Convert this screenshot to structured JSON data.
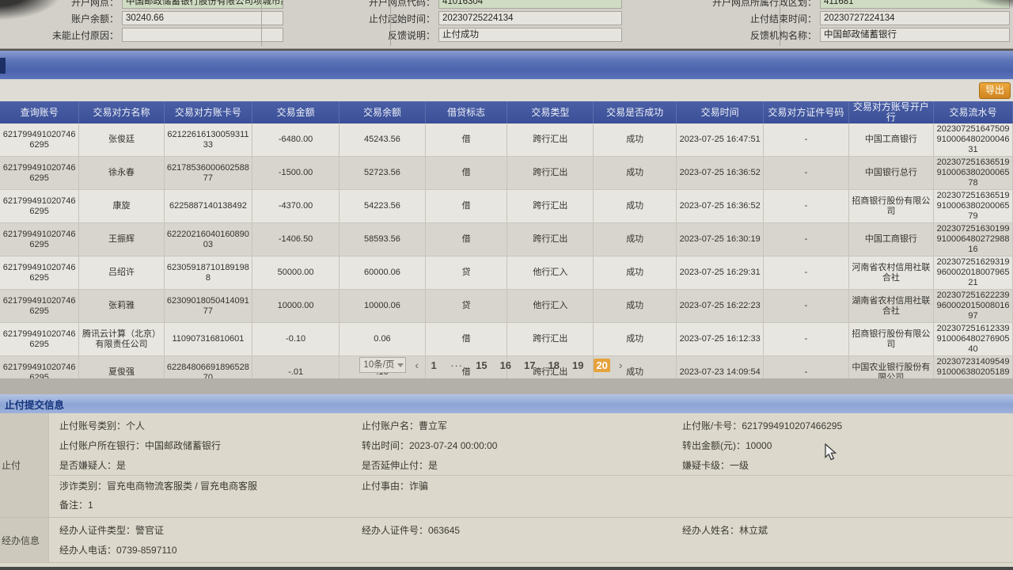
{
  "top_form": {
    "fields": [
      {
        "label": "开户网点",
        "value": "中国邮政储蓄银行股份有限公司项城市高寺...",
        "highlight": true
      },
      {
        "label": "开户网点代码",
        "value": "41016304",
        "highlight": true
      },
      {
        "label": "开户网点所属行政区划",
        "value": "411681",
        "highlight": true
      },
      {
        "label": "账户余额",
        "value": "30240.66",
        "highlight": false
      },
      {
        "label": "止付起始时间",
        "value": "20230725224134",
        "highlight": false
      },
      {
        "label": "止付结束时间",
        "value": "20230727224134",
        "highlight": false
      },
      {
        "label": "未能止付原因",
        "value": "",
        "highlight": false
      },
      {
        "label": "反馈说明",
        "value": "止付成功",
        "highlight": false
      },
      {
        "label": "反馈机构名称",
        "value": "中国邮政储蓄银行",
        "highlight": false
      }
    ]
  },
  "toolbar": {
    "export_label": "导出"
  },
  "table": {
    "columns": [
      "查询账号",
      "交易对方名称",
      "交易对方账卡号",
      "交易金额",
      "交易余额",
      "借贷标志",
      "交易类型",
      "交易是否成功",
      "交易时间",
      "交易对方证件号码",
      "交易对方账号开户行",
      "交易流水号"
    ],
    "rows": [
      [
        "6217994910207466295",
        "张俊廷",
        "6212261613005931133",
        "-6480.00",
        "45243.56",
        "借",
        "跨行汇出",
        "成功",
        "2023-07-25 16:47:51",
        "-",
        "中国工商银行",
        "20230725164750991000648020004631"
      ],
      [
        "6217994910207466295",
        "徐永春",
        "6217853600060258877",
        "-1500.00",
        "52723.56",
        "借",
        "跨行汇出",
        "成功",
        "2023-07-25 16:36:52",
        "-",
        "中国银行总行",
        "20230725163651991000638020006578"
      ],
      [
        "6217994910207466295",
        "康旋",
        "6225887140138492",
        "-4370.00",
        "54223.56",
        "借",
        "跨行汇出",
        "成功",
        "2023-07-25 16:36:52",
        "-",
        "招商银行股份有限公司",
        "20230725163651991000638020006579"
      ],
      [
        "6217994910207466295",
        "王振辉",
        "6222021604016089003",
        "-1406.50",
        "58593.56",
        "借",
        "跨行汇出",
        "成功",
        "2023-07-25 16:30:19",
        "-",
        "中国工商银行",
        "20230725163019991000648027298816"
      ],
      [
        "6217994910207466295",
        "吕绍许",
        "623059187101891988",
        "50000.00",
        "60000.06",
        "贷",
        "他行汇入",
        "成功",
        "2023-07-25 16:29:31",
        "-",
        "河南省农村信用社联合社",
        "20230725162931996000201800796521"
      ],
      [
        "6217994910207466295",
        "张莉雅",
        "6230901805041409177",
        "10000.00",
        "10000.06",
        "贷",
        "他行汇入",
        "成功",
        "2023-07-25 16:22:23",
        "-",
        "湖南省农村信用社联合社",
        "20230725162223996000201500801697"
      ],
      [
        "6217994910207466295",
        "腾讯云计算（北京）有限责任公司",
        "110907316810601",
        "-0.10",
        "0.06",
        "借",
        "跨行汇出",
        "成功",
        "2023-07-25 16:12:33",
        "-",
        "招商银行股份有限公司",
        "20230725161233991000648027690540"
      ],
      [
        "6217994910207466295",
        "夏俊强",
        "6228480669189652870",
        "-.01",
        ".16",
        "借",
        "跨行汇出",
        "成功",
        "2023-07-23 14:09:54",
        "-",
        "中国农业银行股份有限公司",
        "20230723140954991000638020518963"
      ]
    ]
  },
  "pagination": {
    "page_size": "10条/页",
    "prev": "‹",
    "next": "›",
    "pages": [
      "1",
      "···",
      "15",
      "16",
      "17",
      "18",
      "19",
      "20"
    ],
    "active": "20"
  },
  "submit_info": {
    "title": "止付提交信息",
    "groups": [
      {
        "label": "止付",
        "rows": [
          [
            {
              "label": "止付账号类别",
              "value": "个人"
            },
            {
              "label": "止付账户名",
              "value": "曹立军"
            },
            {
              "label": "止付账/卡号",
              "value": "6217994910207466295"
            }
          ],
          [
            {
              "label": "止付账户所在银行",
              "value": "中国邮政储蓄银行"
            },
            {
              "label": "转出时间",
              "value": "2023-07-24 00:00:00"
            },
            {
              "label": "转出金额(元)",
              "value": "10000"
            }
          ],
          [
            {
              "label": "是否嫌疑人",
              "value": "是"
            },
            {
              "label": "是否延伸止付",
              "value": "是"
            },
            {
              "label": "嫌疑卡级",
              "value": "一级"
            }
          ],
          [
            {
              "label": "涉诈类别",
              "value": "冒充电商物流客服类 / 冒充电商客服",
              "divider": true
            },
            {
              "label": "止付事由",
              "value": "诈骗"
            },
            null
          ],
          [
            {
              "label": "备注",
              "value": "1"
            },
            null,
            null
          ]
        ]
      },
      {
        "label": "经办信息",
        "rows": [
          [
            {
              "label": "经办人证件类型",
              "value": "警官证"
            },
            {
              "label": "经办人证件号",
              "value": "063645"
            },
            {
              "label": "经办人姓名",
              "value": "林立斌"
            }
          ],
          [
            {
              "label": "经办人电话",
              "value": "0739-8597110"
            },
            null,
            null
          ]
        ]
      }
    ]
  }
}
